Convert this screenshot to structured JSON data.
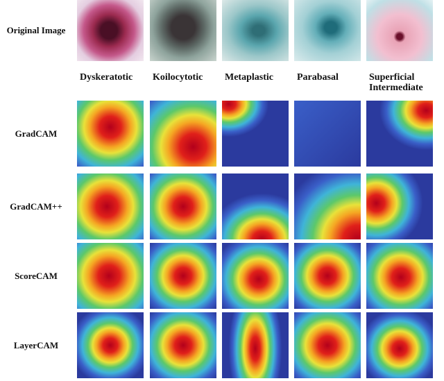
{
  "row_labels": [
    "Original Image",
    "GradCAM",
    "GradCAM++",
    "ScoreCAM",
    "LayerCAM"
  ],
  "column_labels": [
    "Dyskeratotic",
    "Koilocytotic",
    "Metaplastic",
    "Parabasal",
    "Superficial Intermediate"
  ]
}
